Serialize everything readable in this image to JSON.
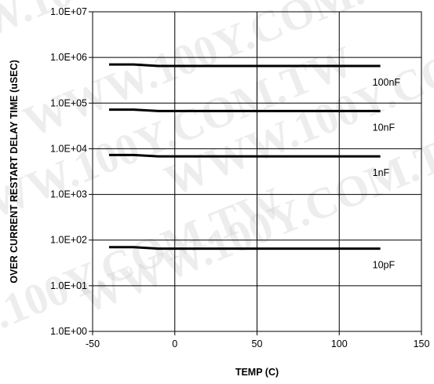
{
  "watermark": {
    "text": "WWW.100Y.COM.TW"
  },
  "chart_data": {
    "type": "line",
    "title": "",
    "xlabel": "TEMP (C)",
    "ylabel": "OVER CURRENT RESTART DELAY TIME (uSEC)",
    "xlim": [
      -50,
      150
    ],
    "ylim": [
      1,
      10000000
    ],
    "y_scale": "log",
    "grid": true,
    "x_ticks": [
      -50,
      0,
      50,
      100,
      150
    ],
    "x_tick_labels": [
      "-50",
      "0",
      "50",
      "100",
      "150"
    ],
    "y_ticks": [
      1,
      10,
      100,
      1000,
      10000,
      100000,
      1000000,
      10000000
    ],
    "y_tick_labels": [
      "1.0E+00",
      "1.0E+01",
      "1.0E+02",
      "1.0E+03",
      "1.0E+04",
      "1.0E+05",
      "1.0E+06",
      "1.0E+07"
    ],
    "line_color": "#000000",
    "series": [
      {
        "name": "100nF",
        "x": [
          -40,
          -25,
          -10,
          25,
          85,
          125
        ],
        "values": [
          700000,
          700000,
          650000,
          650000,
          650000,
          650000
        ]
      },
      {
        "name": "10nF",
        "x": [
          -40,
          -25,
          -10,
          25,
          85,
          125
        ],
        "values": [
          72000,
          72000,
          67000,
          67000,
          67000,
          67000
        ]
      },
      {
        "name": "1nF",
        "x": [
          -40,
          -25,
          -10,
          25,
          85,
          125
        ],
        "values": [
          7300,
          7300,
          6800,
          6800,
          6800,
          6800
        ]
      },
      {
        "name": "10pF",
        "x": [
          -40,
          -25,
          -10,
          25,
          85,
          125
        ],
        "values": [
          70,
          70,
          65,
          65,
          65,
          65
        ]
      }
    ]
  }
}
